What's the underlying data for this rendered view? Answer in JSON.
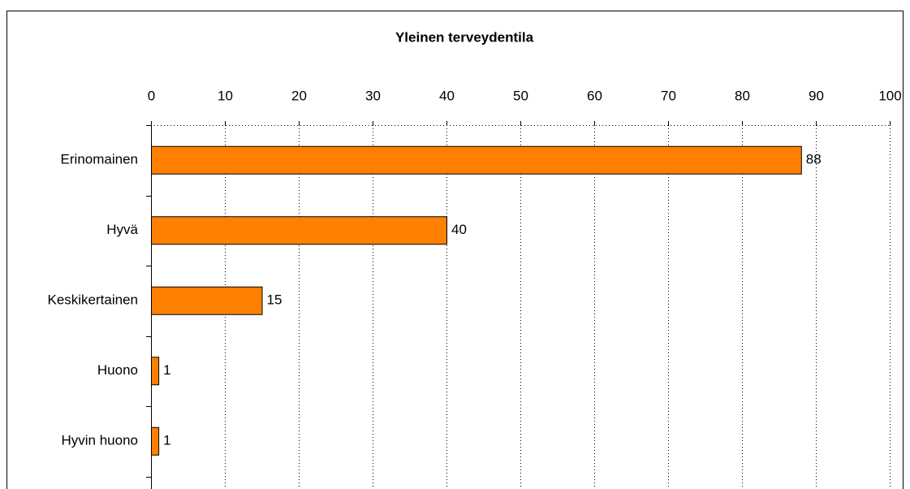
{
  "chart_data": {
    "type": "bar",
    "orientation": "horizontal",
    "title": "Yleinen terveydentila",
    "categories": [
      "Erinomainen",
      "Hyvä",
      "Keskikertainen",
      "Huono",
      "Hyvin huono"
    ],
    "values": [
      88,
      40,
      15,
      1,
      1
    ],
    "color": "#ff7f00",
    "xlim": [
      0,
      100
    ],
    "xticks": [
      0,
      10,
      20,
      30,
      40,
      50,
      60,
      70,
      80,
      90,
      100
    ],
    "grid": true
  }
}
